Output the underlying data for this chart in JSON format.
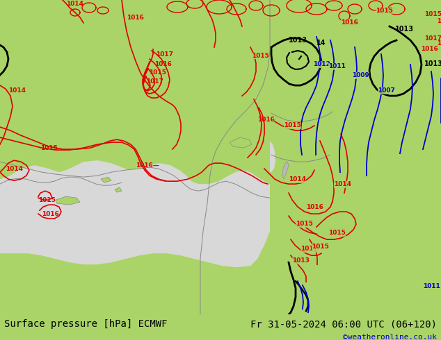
{
  "title_left": "Surface pressure [hPa] ECMWF",
  "title_right": "Fr 31-05-2024 06:00 UTC (06+120)",
  "credit": "©weatheronline.co.uk",
  "bg_color": "#aad468",
  "sea_color": "#d8d8d8",
  "land_color": "#aad468",
  "fig_width": 6.34,
  "fig_height": 4.9,
  "dpi": 100,
  "bottom_bar_color": "#aad468",
  "title_fontsize": 10,
  "credit_fontsize": 8,
  "credit_color": "#0000cc",
  "text_color": "#000000"
}
